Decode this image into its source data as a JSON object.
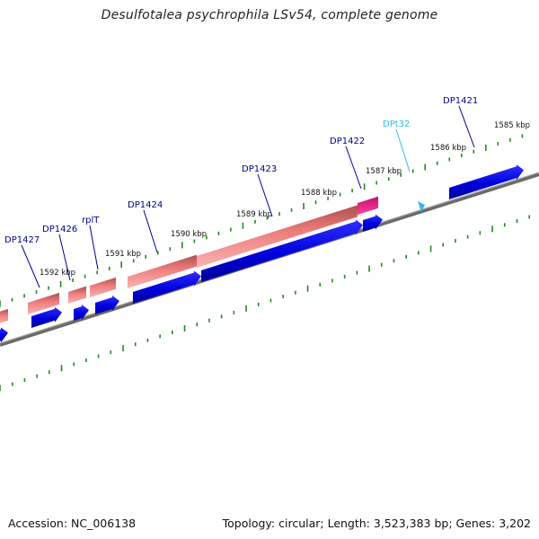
{
  "title": "Desulfotalea psychrophila LSv54, complete genome",
  "footer": {
    "accession": "Accession: NC_006138",
    "summary": "Topology: circular; Length: 3,523,383 bp; Genes: 3,202"
  },
  "ruler_labels": [
    "1592 kbp",
    "1591 kbp",
    "1590 kbp",
    "1589 kbp",
    "1588 kbp",
    "1587 kbp",
    "1586 kbp",
    "1585 kbp"
  ],
  "gene_labels": [
    {
      "name": "DP1427",
      "color": "#00008b"
    },
    {
      "name": "DP1426",
      "color": "#00008b"
    },
    {
      "name": "rplT",
      "color": "#00008b"
    },
    {
      "name": "DP1424",
      "color": "#00008b"
    },
    {
      "name": "DP1423",
      "color": "#00008b"
    },
    {
      "name": "DP1422",
      "color": "#00008b"
    },
    {
      "name": "DPt32",
      "color": "#33bbdd"
    },
    {
      "name": "DP1421",
      "color": "#00008b"
    }
  ],
  "colors": {
    "cds_forward": "#0000dd",
    "rna_feature": "#f08080",
    "highlight_feature": "#ee1188",
    "trna_marker": "#33bbee",
    "backbone": "#888888",
    "ticks": "#228822"
  }
}
